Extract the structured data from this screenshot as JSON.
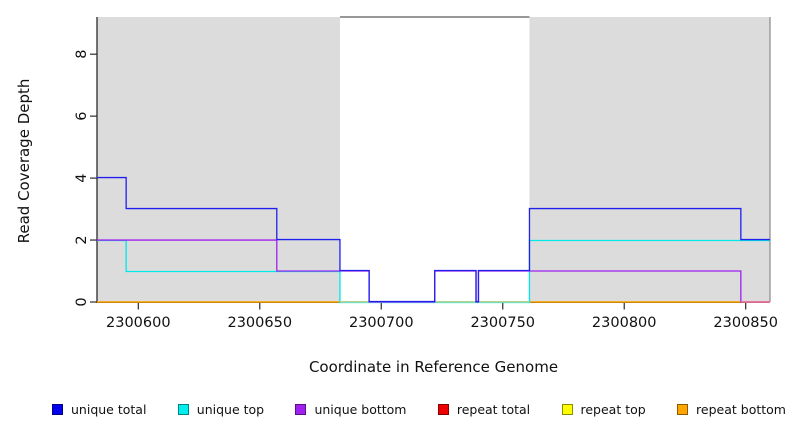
{
  "figure": {
    "background": "#FFFFFF"
  },
  "chart_data": {
    "type": "line",
    "subtype": "step-coverage",
    "title": "",
    "xlabel": "Coordinate in Reference Genome",
    "ylabel": "Read Coverage Depth",
    "xlim": [
      2300583,
      2300860
    ],
    "ylim": [
      0,
      9.2
    ],
    "x_ticks": [
      2300600,
      2300650,
      2300700,
      2300750,
      2300800,
      2300850
    ],
    "y_ticks": [
      0,
      2,
      4,
      6,
      8
    ],
    "grid": false,
    "legend_position": "bottom",
    "shade_color": "#DCDCDC",
    "frame_color": "#8A8A8A",
    "axis_color": "#2B2B2B",
    "shaded_regions": [
      {
        "x0": 2300583,
        "x1": 2300683
      },
      {
        "x0": 2300761,
        "x1": 2300860
      }
    ],
    "gap_top_border": {
      "x0": 2300683,
      "x1": 2300761
    },
    "series": [
      {
        "name": "unique total",
        "color": "#2020EE",
        "steps": [
          [
            2300583,
            4
          ],
          [
            2300595,
            3
          ],
          [
            2300657,
            2
          ],
          [
            2300683,
            1
          ],
          [
            2300695,
            0
          ],
          [
            2300722,
            1
          ],
          [
            2300739,
            0
          ],
          [
            2300740,
            1
          ],
          [
            2300761,
            3
          ],
          [
            2300848,
            2
          ],
          [
            2300860,
            2
          ]
        ]
      },
      {
        "name": "unique top",
        "color": "#00E8E8",
        "steps": [
          [
            2300583,
            2
          ],
          [
            2300595,
            1
          ],
          [
            2300683,
            0
          ],
          [
            2300761,
            2
          ],
          [
            2300860,
            2
          ]
        ]
      },
      {
        "name": "unique bottom",
        "color": "#A020F0",
        "steps": [
          [
            2300583,
            2
          ],
          [
            2300657,
            1
          ],
          [
            2300695,
            0
          ],
          [
            2300722,
            1
          ],
          [
            2300739,
            0
          ],
          [
            2300740,
            1
          ],
          [
            2300848,
            0
          ],
          [
            2300860,
            0
          ]
        ]
      },
      {
        "name": "repeat total",
        "color": "#EE0000",
        "steps": [
          [
            2300583,
            0
          ],
          [
            2300860,
            0
          ]
        ]
      },
      {
        "name": "repeat top",
        "color": "#FFFF00",
        "steps": [
          [
            2300583,
            0
          ],
          [
            2300860,
            0
          ]
        ]
      },
      {
        "name": "repeat bottom",
        "color": "#FFA500",
        "steps": [
          [
            2300583,
            0
          ],
          [
            2300860,
            0
          ]
        ]
      }
    ],
    "overlap_blend_segments": [
      {
        "x0": 2300683,
        "x1": 2300761,
        "y": 0,
        "color": "#9FD89F"
      },
      {
        "x0": 2300848,
        "x1": 2300860,
        "y": 0,
        "color": "#E870A8"
      }
    ]
  },
  "legend": {
    "items": [
      {
        "label": "unique total",
        "color": "#0000EE"
      },
      {
        "label": "unique top",
        "color": "#00EEEE"
      },
      {
        "label": "unique bottom",
        "color": "#A020F0"
      },
      {
        "label": "repeat total",
        "color": "#EE0000"
      },
      {
        "label": "repeat top",
        "color": "#FFFF00"
      },
      {
        "label": "repeat bottom",
        "color": "#FFA500"
      }
    ]
  }
}
